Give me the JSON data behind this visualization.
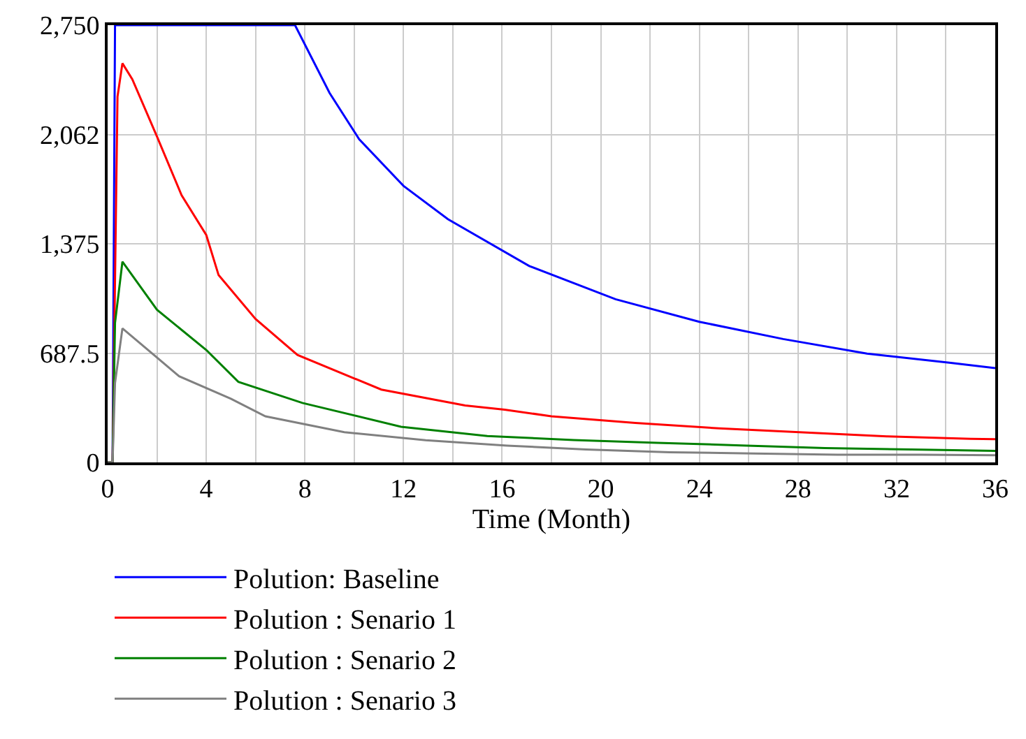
{
  "chart_data": {
    "type": "line",
    "xlabel": "Time (Month)",
    "xlim": [
      0,
      36
    ],
    "xticks": [
      0,
      {
        "value": 2,
        "label": null
      },
      4,
      {
        "value": 6,
        "label": null
      },
      8,
      {
        "value": 10,
        "label": null
      },
      12,
      {
        "value": 14,
        "label": null
      },
      16,
      {
        "value": 18,
        "label": null
      },
      20,
      {
        "value": 22,
        "label": null
      },
      24,
      {
        "value": 26,
        "label": null
      },
      28,
      {
        "value": 30,
        "label": null
      },
      32,
      {
        "value": 34,
        "label": null
      },
      36
    ],
    "ylim": [
      0,
      2750
    ],
    "yticks": [
      0,
      {
        "value": 687.5,
        "label": "687.5"
      },
      {
        "value": 1375,
        "label": "1,375"
      },
      {
        "value": 2062,
        "label": "2,062"
      },
      {
        "value": 2750,
        "label": "2,750"
      }
    ],
    "grid": true,
    "legend": "bottom",
    "marker": "none",
    "line_style": "solid",
    "series": [
      {
        "name": "Polution: Baseline",
        "color": "#0000ff",
        "x": [
          0,
          0.2,
          0.3,
          7.6,
          9,
          10.2,
          12,
          13.8,
          17.1,
          20.6,
          24,
          27.4,
          30.8,
          34.2,
          36
        ],
        "values": [
          0,
          0,
          2750,
          2750,
          2324,
          2033,
          1739,
          1530,
          1235,
          1026,
          884,
          776,
          684,
          626,
          593
        ]
      },
      {
        "name": "Polution : Senario 1",
        "color": "#ff0000",
        "x": [
          0,
          0.2,
          0.4,
          0.6,
          1,
          2,
          3,
          4,
          4.5,
          6,
          7.7,
          11.1,
          14.5,
          16.1,
          18,
          21.4,
          24.8,
          28.2,
          31.6,
          35,
          36
        ],
        "values": [
          0,
          0,
          2300,
          2510,
          2410,
          2050,
          1680,
          1430,
          1178,
          902,
          676,
          458,
          358,
          332,
          290,
          248,
          214,
          189,
          164,
          148,
          146
        ]
      },
      {
        "name": "Polution : Senario 2",
        "color": "#008000",
        "x": [
          0,
          0.2,
          0.3,
          0.6,
          2,
          4,
          5.3,
          7.9,
          11.9,
          15.4,
          18.9,
          22.3,
          25.7,
          29.1,
          32.6,
          36
        ],
        "values": [
          0,
          0,
          877,
          1262,
          960,
          707,
          507,
          374,
          224,
          166,
          141,
          123,
          107,
          90,
          81,
          73
        ]
      },
      {
        "name": "Polution : Senario 3",
        "color": "#808080",
        "x": [
          0,
          0.2,
          0.3,
          0.6,
          2.9,
          5,
          6.4,
          9.6,
          12.9,
          16.2,
          19.4,
          22.8,
          26.2,
          29.6,
          33,
          36
        ],
        "values": [
          0,
          0,
          500,
          843,
          542,
          400,
          290,
          190,
          140,
          106,
          81,
          64,
          56,
          48,
          48,
          45
        ]
      }
    ]
  }
}
